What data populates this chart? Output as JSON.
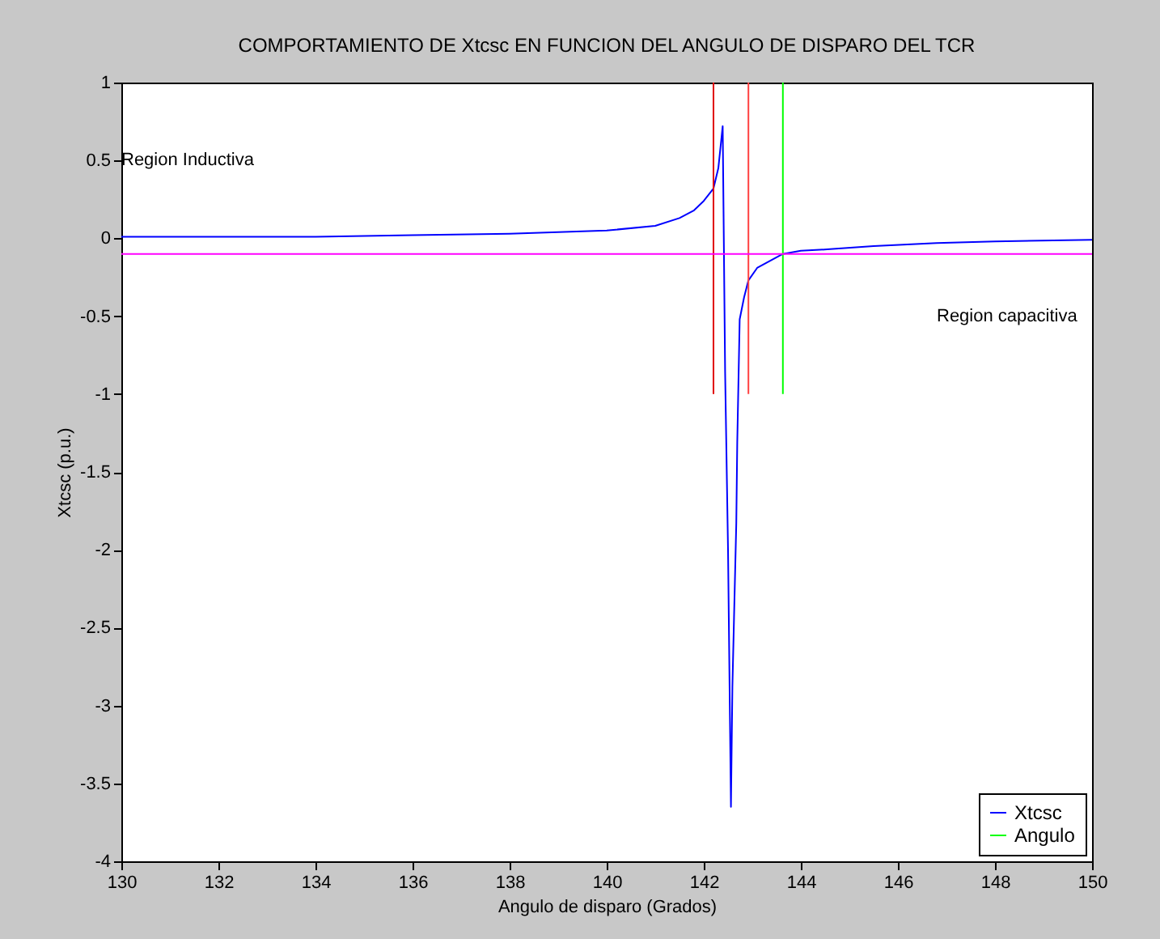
{
  "chart_data": {
    "type": "line",
    "title": "COMPORTAMIENTO DE Xtcsc EN FUNCION DEL ANGULO DE DISPARO DEL TCR",
    "xlabel": "Angulo de disparo (Grados)",
    "ylabel": "Xtcsc (p.u.)",
    "xlim": [
      130,
      150
    ],
    "ylim": [
      -4,
      1
    ],
    "xticks": [
      130,
      132,
      134,
      136,
      138,
      140,
      142,
      144,
      146,
      148,
      150
    ],
    "yticks": [
      -4,
      -3.5,
      -3,
      -2.5,
      -2,
      -1.5,
      -1,
      -0.5,
      0,
      0.5,
      1
    ],
    "grid": false,
    "legend": "bottom right",
    "annotations": [
      "Region Inductiva",
      "Region capacitiva"
    ],
    "series": [
      {
        "name": "Xtcsc",
        "color": "#0000ff",
        "x": [
          130,
          134,
          136,
          138,
          139,
          140,
          141,
          141.5,
          141.8,
          142,
          142.2,
          142.3,
          142.39,
          142.44,
          142.5,
          142.56,
          142.59,
          142.63,
          142.67,
          142.69,
          142.74,
          142.83,
          142.92,
          143.1,
          143.63,
          144,
          144.6,
          145.5,
          146.8,
          148,
          150
        ],
        "values": [
          0.01,
          0.01,
          0.02,
          0.03,
          0.04,
          0.05,
          0.08,
          0.13,
          0.18,
          0.24,
          0.32,
          0.45,
          0.72,
          -0.86,
          -2,
          -3.65,
          -2.88,
          -2.35,
          -1.83,
          -1.31,
          -0.52,
          -0.38,
          -0.27,
          -0.19,
          -0.1,
          -0.08,
          -0.07,
          -0.05,
          -0.03,
          -0.02,
          -0.01
        ]
      },
      {
        "name": "Angulo",
        "color": "#00ff00",
        "x": [
          143.63,
          143.63
        ],
        "values": [
          -1,
          1
        ]
      },
      {
        "color": "#e00000",
        "x": [
          142.2,
          142.2
        ],
        "values": [
          -1,
          1
        ]
      },
      {
        "color": "#ff4040",
        "x": [
          142.92,
          142.92
        ],
        "values": [
          -1,
          1
        ]
      },
      {
        "color": "#ff00ff",
        "x": [
          130,
          150
        ],
        "values": [
          -0.1,
          -0.1
        ]
      }
    ]
  }
}
